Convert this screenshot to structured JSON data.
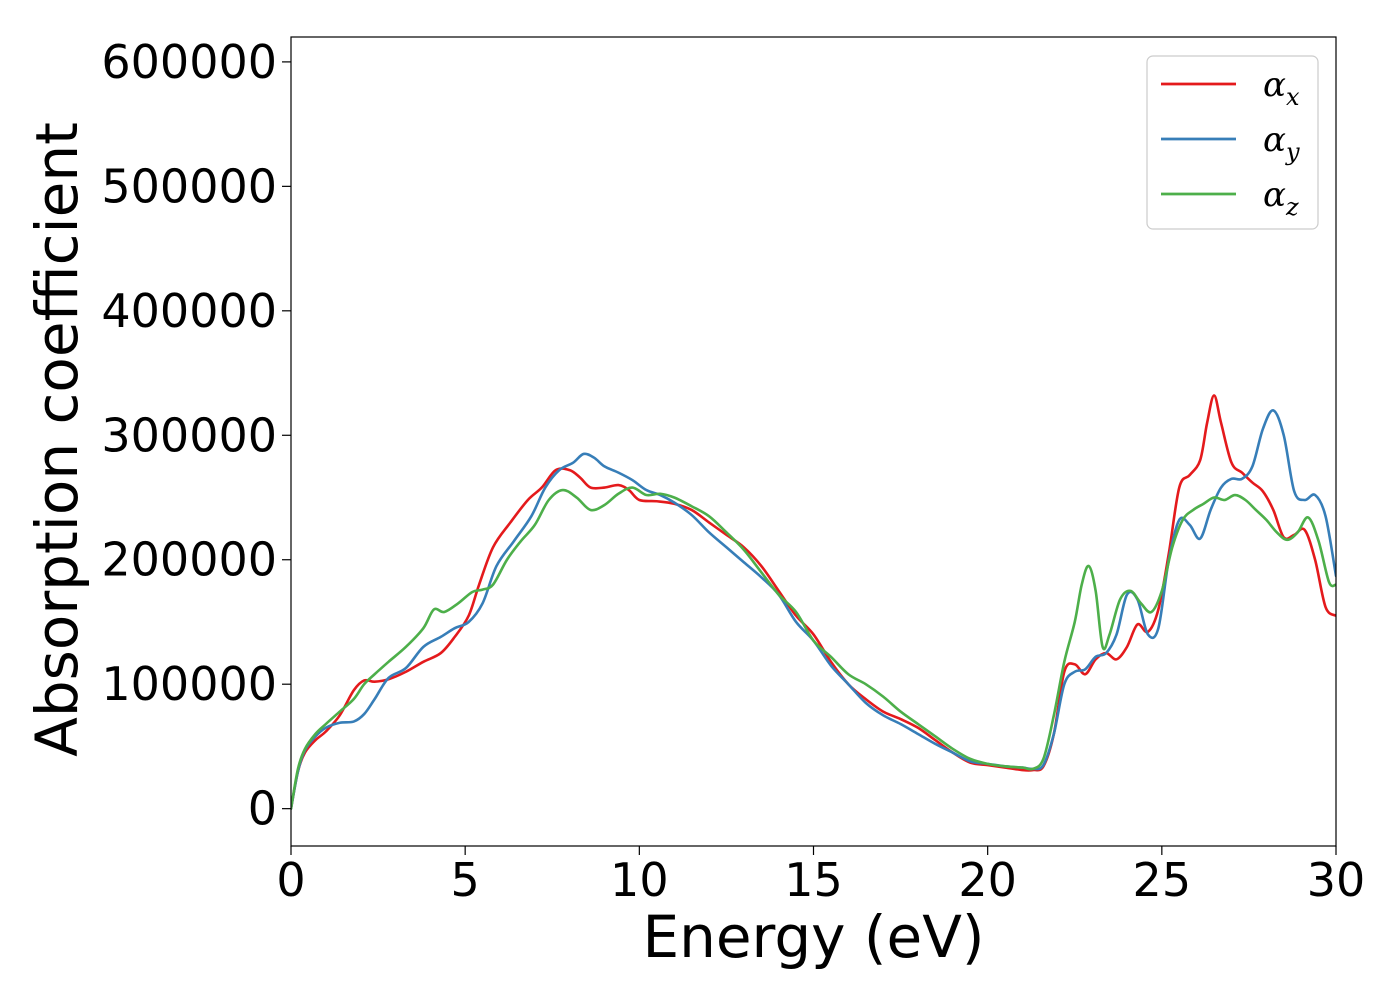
{
  "chart_data": {
    "type": "line",
    "xlabel": "Energy (eV)",
    "ylabel": "Absorption coefficient",
    "xlim": [
      0,
      30
    ],
    "ylim": [
      -30000,
      620000
    ],
    "xticks": [
      0,
      5,
      10,
      15,
      20,
      25,
      30
    ],
    "yticks": [
      0,
      100000,
      200000,
      300000,
      400000,
      500000,
      600000
    ],
    "grid": false,
    "legend_position": "top-right",
    "series": [
      {
        "name": "α_x",
        "legend_base": "α",
        "legend_sub": "x",
        "color": "#e41a1c",
        "x": [
          0,
          0.2,
          0.4,
          0.7,
          1.0,
          1.4,
          1.8,
          2.1,
          2.4,
          2.8,
          3.3,
          3.8,
          4.3,
          4.7,
          5.1,
          5.4,
          5.8,
          6.3,
          6.8,
          7.2,
          7.6,
          8.0,
          8.3,
          8.6,
          9.0,
          9.4,
          9.7,
          10.0,
          10.5,
          11.0,
          11.5,
          12.0,
          12.5,
          13.0,
          13.5,
          14.0,
          14.5,
          15.0,
          15.5,
          16.0,
          16.5,
          17.0,
          17.5,
          18.0,
          18.5,
          19.0,
          19.5,
          20.0,
          20.5,
          21.0,
          21.3,
          21.6,
          21.9,
          22.2,
          22.5,
          22.8,
          23.1,
          23.4,
          23.7,
          24.0,
          24.3,
          24.6,
          24.9,
          25.2,
          25.5,
          25.8,
          26.1,
          26.3,
          26.5,
          26.7,
          27.0,
          27.3,
          27.6,
          27.9,
          28.2,
          28.5,
          28.8,
          29.1,
          29.4,
          29.7,
          30.0
        ],
        "values": [
          0,
          30000,
          45000,
          55000,
          62000,
          75000,
          95000,
          103000,
          102000,
          104000,
          110000,
          118000,
          125000,
          138000,
          155000,
          180000,
          210000,
          230000,
          248000,
          258000,
          272000,
          272000,
          266000,
          258000,
          258000,
          260000,
          256000,
          248000,
          247000,
          245000,
          240000,
          230000,
          220000,
          210000,
          195000,
          175000,
          155000,
          140000,
          118000,
          100000,
          88000,
          78000,
          72000,
          65000,
          55000,
          45000,
          37000,
          35000,
          33000,
          31000,
          31000,
          34000,
          60000,
          110000,
          116000,
          108000,
          120000,
          125000,
          120000,
          130000,
          148000,
          142000,
          160000,
          205000,
          258000,
          268000,
          280000,
          310000,
          332000,
          310000,
          278000,
          270000,
          262000,
          255000,
          240000,
          218000,
          220000,
          224000,
          200000,
          162000,
          155000
        ]
      },
      {
        "name": "α_y",
        "legend_base": "α",
        "legend_sub": "y",
        "color": "#377eb8",
        "x": [
          0,
          0.2,
          0.4,
          0.7,
          1.0,
          1.4,
          1.8,
          2.1,
          2.4,
          2.8,
          3.3,
          3.8,
          4.3,
          4.7,
          5.1,
          5.5,
          5.9,
          6.4,
          6.9,
          7.3,
          7.7,
          8.1,
          8.4,
          8.7,
          9.0,
          9.4,
          9.8,
          10.2,
          10.6,
          11.0,
          11.5,
          12.0,
          12.5,
          13.0,
          13.5,
          14.0,
          14.5,
          15.0,
          15.5,
          16.0,
          16.5,
          17.0,
          17.5,
          18.0,
          18.5,
          19.0,
          19.5,
          20.0,
          20.5,
          21.0,
          21.3,
          21.6,
          21.9,
          22.2,
          22.5,
          22.8,
          23.1,
          23.4,
          23.7,
          24.0,
          24.3,
          24.6,
          24.9,
          25.2,
          25.5,
          25.8,
          26.1,
          26.4,
          26.7,
          27.0,
          27.3,
          27.6,
          27.9,
          28.2,
          28.5,
          28.8,
          29.1,
          29.4,
          29.7,
          30.0
        ],
        "values": [
          0,
          30000,
          47000,
          58000,
          65000,
          69000,
          70000,
          76000,
          88000,
          105000,
          113000,
          130000,
          138000,
          145000,
          150000,
          165000,
          195000,
          215000,
          235000,
          258000,
          272000,
          278000,
          285000,
          282000,
          275000,
          270000,
          264000,
          256000,
          252000,
          246000,
          236000,
          222000,
          210000,
          198000,
          186000,
          172000,
          150000,
          135000,
          115000,
          100000,
          85000,
          75000,
          68000,
          60000,
          52000,
          45000,
          38000,
          36000,
          34000,
          33000,
          32000,
          35000,
          60000,
          100000,
          110000,
          112000,
          122000,
          125000,
          140000,
          172000,
          168000,
          140000,
          145000,
          200000,
          232000,
          228000,
          217000,
          240000,
          258000,
          265000,
          265000,
          275000,
          305000,
          320000,
          300000,
          255000,
          248000,
          252000,
          235000,
          187000
        ]
      },
      {
        "name": "α_z",
        "legend_base": "α",
        "legend_sub": "z",
        "color": "#4daf4a",
        "x": [
          0,
          0.2,
          0.4,
          0.7,
          1.0,
          1.4,
          1.8,
          2.1,
          2.4,
          2.8,
          3.3,
          3.8,
          4.1,
          4.4,
          4.8,
          5.2,
          5.5,
          5.8,
          6.2,
          6.6,
          7.0,
          7.4,
          7.8,
          8.2,
          8.6,
          9.0,
          9.4,
          9.8,
          10.2,
          10.6,
          11.0,
          11.5,
          12.0,
          12.5,
          13.0,
          13.5,
          14.0,
          14.5,
          15.0,
          15.5,
          16.0,
          16.5,
          17.0,
          17.5,
          18.0,
          18.5,
          19.0,
          19.5,
          20.0,
          20.5,
          21.0,
          21.3,
          21.6,
          21.9,
          22.2,
          22.5,
          22.7,
          22.9,
          23.1,
          23.3,
          23.5,
          23.8,
          24.1,
          24.4,
          24.7,
          25.0,
          25.3,
          25.6,
          25.9,
          26.2,
          26.5,
          26.8,
          27.1,
          27.4,
          27.7,
          28.0,
          28.3,
          28.6,
          28.9,
          29.2,
          29.5,
          29.8,
          30.0
        ],
        "values": [
          0,
          32000,
          48000,
          60000,
          68000,
          78000,
          88000,
          100000,
          108000,
          118000,
          130000,
          145000,
          160000,
          158000,
          165000,
          174000,
          176000,
          180000,
          200000,
          215000,
          228000,
          248000,
          256000,
          250000,
          240000,
          244000,
          253000,
          258000,
          252000,
          253000,
          250000,
          243000,
          235000,
          222000,
          208000,
          190000,
          172000,
          158000,
          135000,
          122000,
          108000,
          100000,
          90000,
          78000,
          68000,
          58000,
          48000,
          40000,
          36000,
          34000,
          33000,
          32000,
          40000,
          75000,
          118000,
          150000,
          180000,
          195000,
          175000,
          130000,
          140000,
          168000,
          175000,
          165000,
          158000,
          175000,
          210000,
          232000,
          240000,
          245000,
          250000,
          248000,
          252000,
          248000,
          240000,
          232000,
          222000,
          216000,
          222000,
          234000,
          215000,
          182000,
          180000
        ]
      }
    ]
  }
}
